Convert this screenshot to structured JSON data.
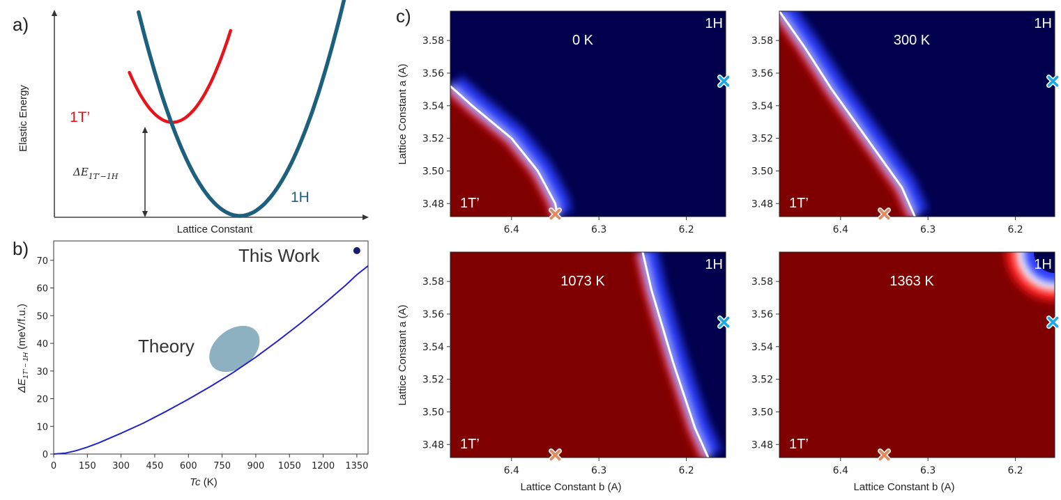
{
  "panel_letters": {
    "a": "a)",
    "b": "b)",
    "c": "c)"
  },
  "colors": {
    "red_curve": "#e8141c",
    "teal_curve": "#1d607e",
    "blue_line": "#2222cc",
    "theory_ellipse": "#7aa3b6",
    "map_red": "#7f0000",
    "map_blue": "#00004d",
    "marker_orange": "#e38a5e",
    "marker_blue": "#23a8e0"
  },
  "chart_data": [
    {
      "id": "a",
      "type": "line",
      "xlabel": "Lattice Constant",
      "ylabel": "Elastic Energy",
      "series": [
        {
          "name": "1T’",
          "shape": "parabola",
          "x_min": 0.38,
          "y_min": 0.46
        },
        {
          "name": "1H",
          "shape": "parabola",
          "x_min": 0.6,
          "y_min": 0.0
        }
      ],
      "annotation": "ΔE",
      "annotation_subscript": "1T′−1H"
    },
    {
      "id": "b",
      "type": "line",
      "xlabel_main": "Tc",
      "xlabel_unit": " (K)",
      "ylabel_main": "ΔE",
      "ylabel_sub": "1T′ − 1H",
      "ylabel_unit": " (meV/f.u.)",
      "xlim": [
        0,
        1400
      ],
      "ylim": [
        0,
        77
      ],
      "xticks": [
        0,
        150,
        300,
        450,
        600,
        750,
        900,
        1050,
        1200,
        1350
      ],
      "yticks": [
        0,
        10,
        20,
        30,
        40,
        50,
        60,
        70
      ],
      "x": [
        0,
        50,
        100,
        150,
        200,
        300,
        400,
        500,
        600,
        700,
        800,
        900,
        1000,
        1100,
        1200,
        1300,
        1350,
        1400
      ],
      "y": [
        0,
        0.3,
        1.2,
        2.5,
        4.0,
        7.5,
        11.2,
        15.4,
        19.8,
        24.5,
        29.5,
        35.0,
        41.0,
        47.3,
        54.0,
        61.0,
        64.8,
        68.0
      ],
      "theory_region": {
        "label": "Theory",
        "x_center": 805,
        "y_center": 38,
        "x_halfwidth": 125,
        "y_halfwidth": 7
      },
      "this_work": {
        "label": "This Work",
        "x": 1350,
        "y": 73.5
      }
    },
    {
      "id": "c",
      "type": "heatmap",
      "xlabel": "Lattice Constant b (A)",
      "ylabel": "Lattice Constant a (A)",
      "xlim": [
        6.47,
        6.155
      ],
      "ylim": [
        3.472,
        3.598
      ],
      "xticks": [
        "6.4",
        "6.3",
        "6.2"
      ],
      "yticks": [
        "3.48",
        "3.50",
        "3.52",
        "3.54",
        "3.56",
        "3.58"
      ],
      "region_labels": {
        "top_right": "1H",
        "bottom_left": "1T’"
      },
      "markers": {
        "orange": {
          "b": 6.35,
          "a": 3.4735
        },
        "blue": {
          "b": 6.157,
          "a": 3.555
        }
      },
      "maps": [
        {
          "temperature": "0 K",
          "boundary_b": [
            6.347,
            6.35,
            6.37,
            6.4,
            6.445,
            6.47
          ],
          "boundary_a": [
            3.472,
            3.48,
            3.5,
            3.52,
            3.54,
            3.552
          ]
        },
        {
          "temperature": "300 K",
          "boundary_b": [
            6.315,
            6.33,
            6.37,
            6.41,
            6.44,
            6.47
          ],
          "boundary_a": [
            3.472,
            3.49,
            3.52,
            3.55,
            3.575,
            3.598
          ]
        },
        {
          "temperature": "1073 K",
          "boundary_b": [
            6.175,
            6.19,
            6.215,
            6.24,
            6.25
          ],
          "boundary_a": [
            3.472,
            3.49,
            3.53,
            3.575,
            3.598
          ]
        },
        {
          "temperature": "1363 K",
          "corner": true
        }
      ]
    }
  ]
}
